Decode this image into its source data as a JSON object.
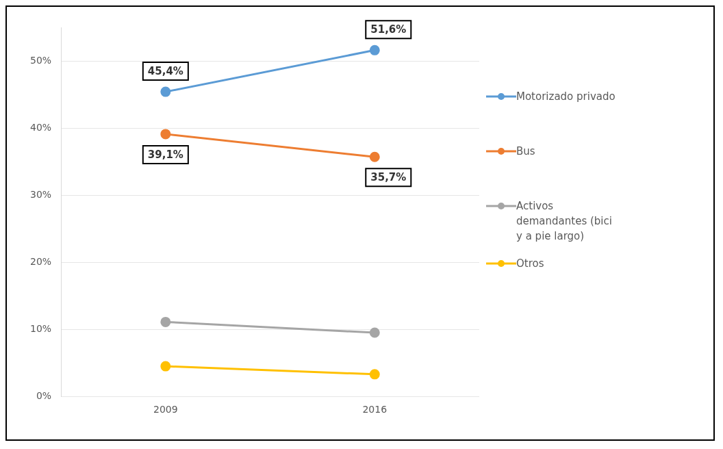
{
  "chart_data": {
    "type": "line",
    "categories": [
      "2009",
      "2016"
    ],
    "series": [
      {
        "name": "Motorizado privado",
        "color": "#5b9bd5",
        "values": [
          45.4,
          51.6
        ],
        "value_labels": [
          "45,4%",
          "51,6%"
        ]
      },
      {
        "name": "Bus",
        "color": "#ed7d31",
        "values": [
          39.1,
          35.7
        ],
        "value_labels": [
          "39,1%",
          "35,7%"
        ]
      },
      {
        "name": "Activos demandantes (bici y a pie largo)",
        "color": "#a5a5a5",
        "values": [
          11.1,
          9.5
        ]
      },
      {
        "name": "Otros",
        "color": "#ffc000",
        "values": [
          4.5,
          3.3
        ]
      }
    ],
    "ylim": [
      0,
      55
    ],
    "yticks": [
      {
        "value": 0,
        "label": "0%"
      },
      {
        "value": 10,
        "label": "10%"
      },
      {
        "value": 20,
        "label": "20%"
      },
      {
        "value": 30,
        "label": "30%"
      },
      {
        "value": 40,
        "label": "40%"
      },
      {
        "value": 50,
        "label": "50%"
      }
    ],
    "grid": "y",
    "legend": "right",
    "marker": "circle",
    "line_style": "solid"
  }
}
